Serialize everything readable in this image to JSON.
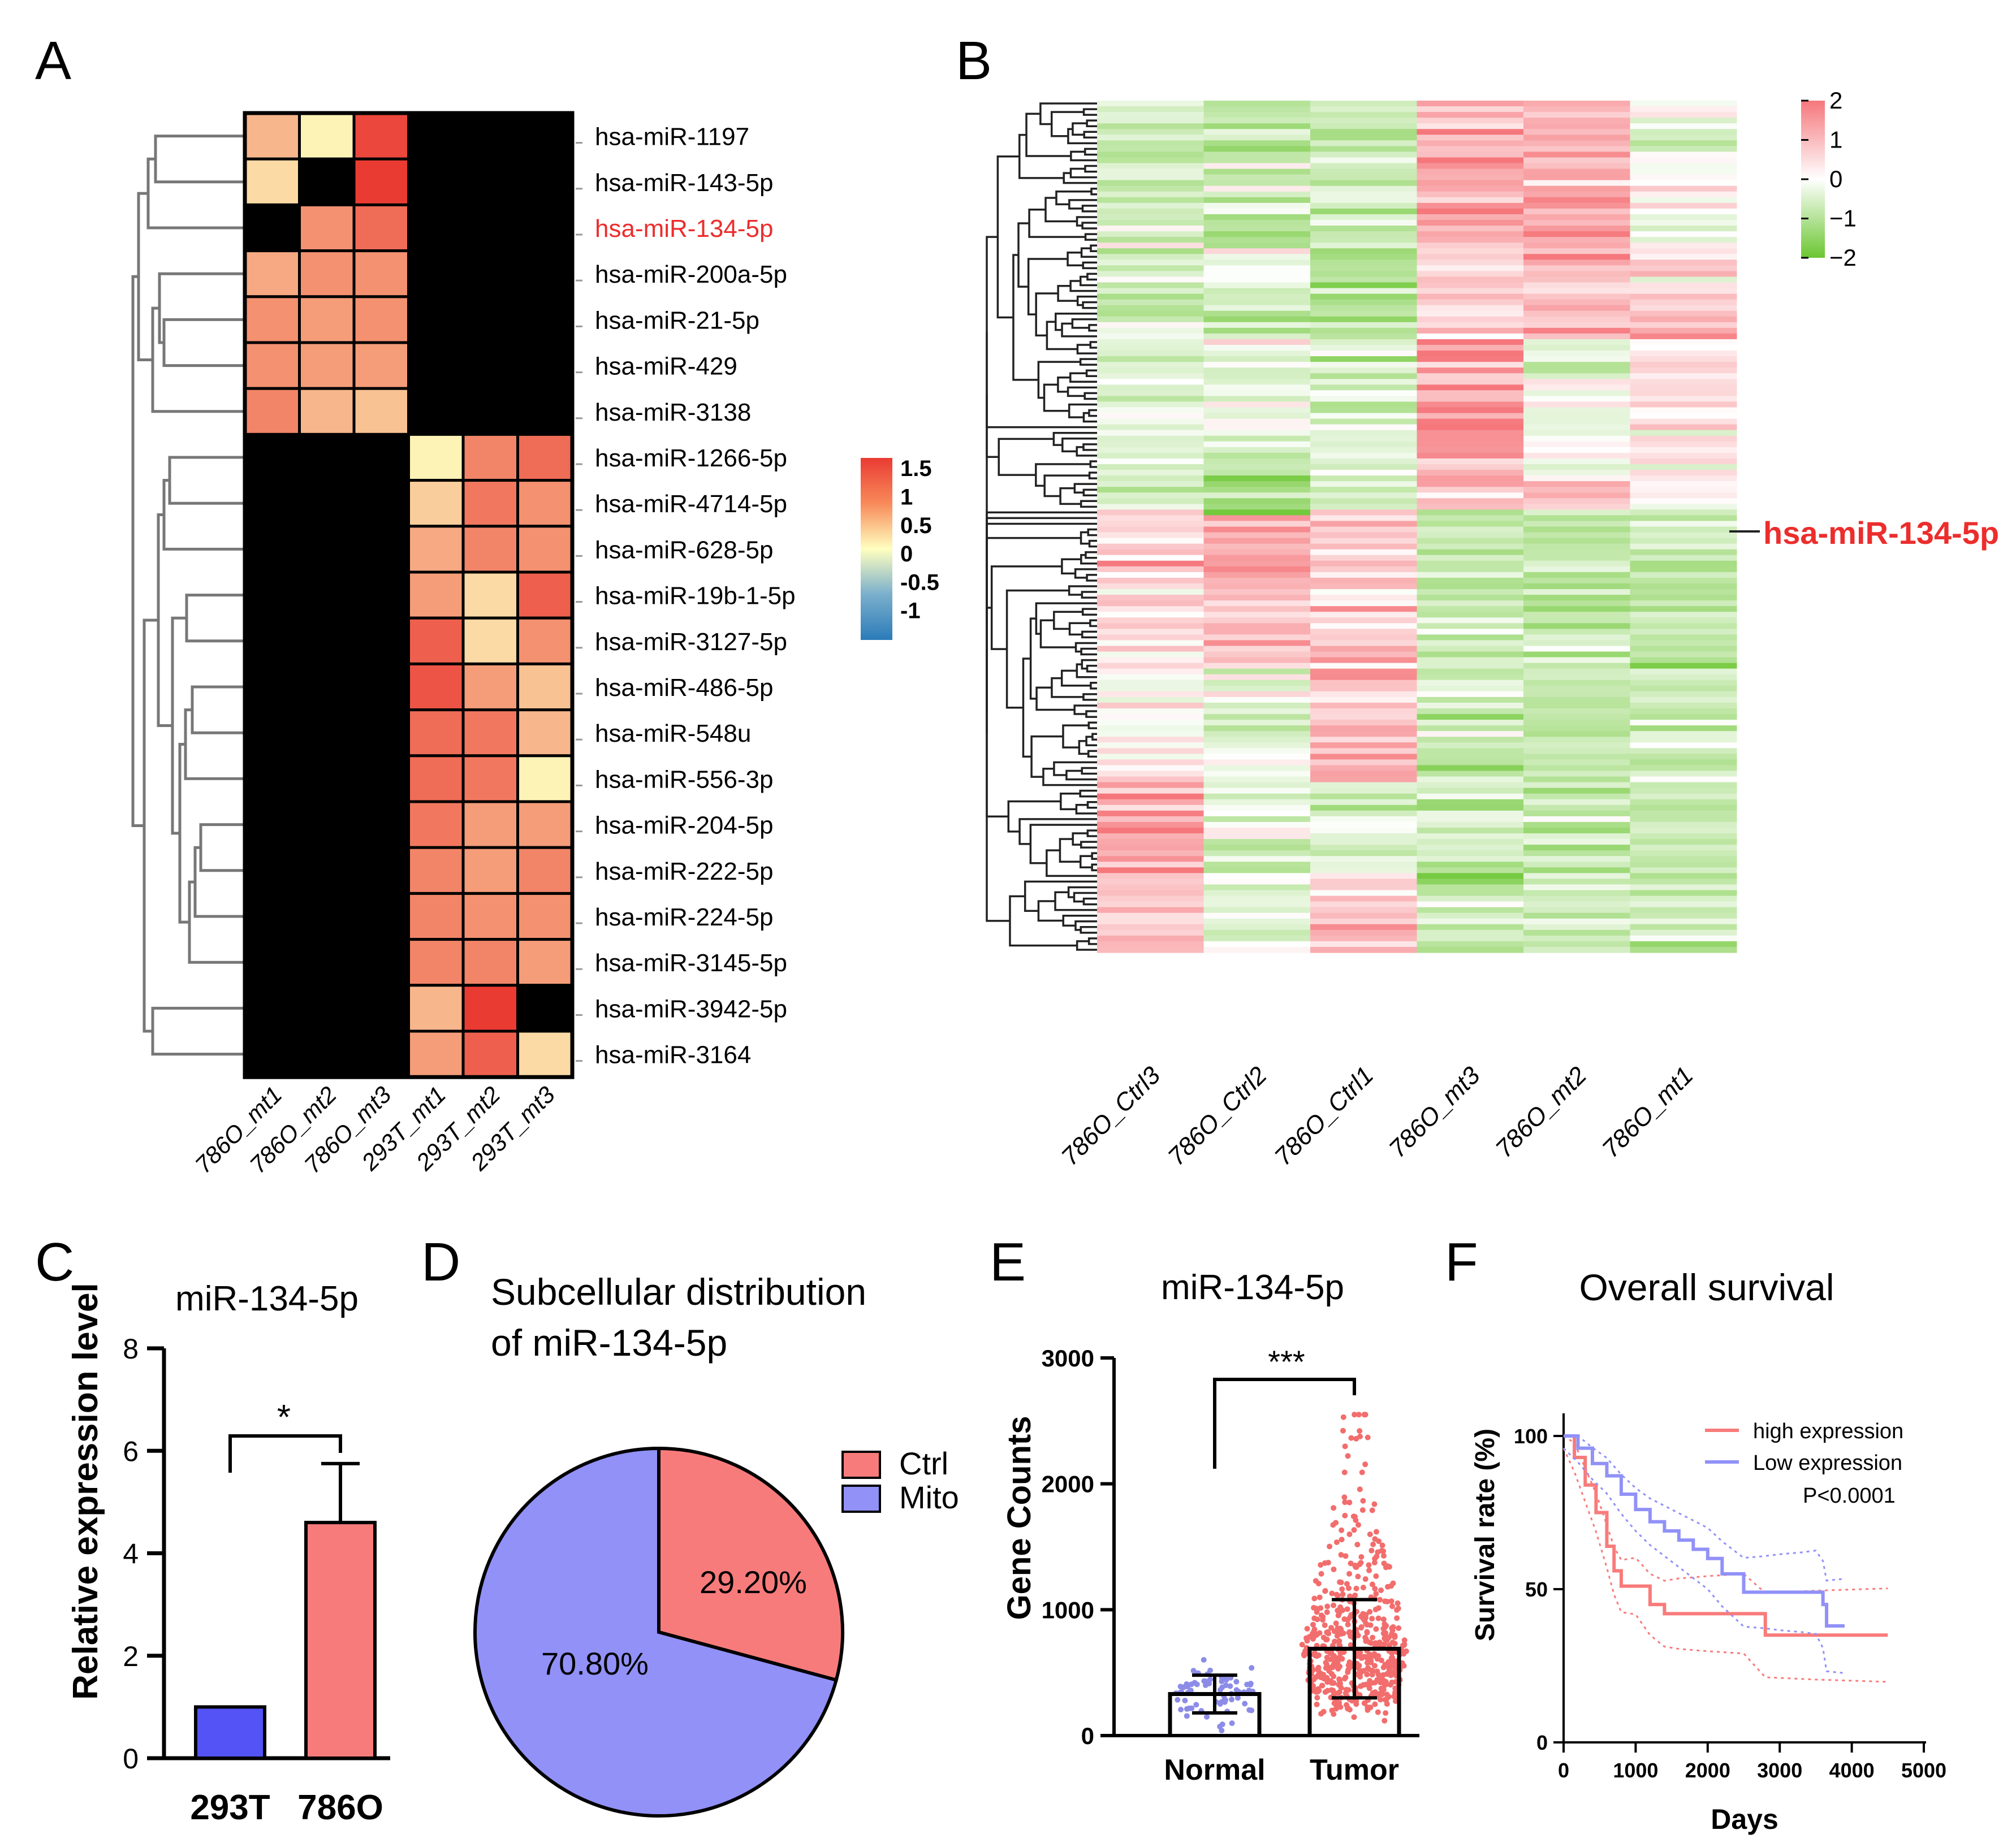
{
  "panel_labels": [
    "A",
    "B",
    "C",
    "D",
    "E",
    "F"
  ],
  "colors": {
    "heat_low": "#2b7bb9",
    "heat_mid": "#ffffbf",
    "heat_high": "#ea3b33",
    "hm_low": "#6bc631",
    "hm_mid": "#ffffff",
    "hm_high": "#f5777c",
    "bar_293T": "#5353f6",
    "bar_786O": "#f87b7b",
    "pie_ctrl": "#f87b7b",
    "pie_mito": "#9191f8",
    "normal_pts": "#8c8ce8",
    "tumor_pts": "#f26d6d",
    "high_expr": "#f87b7b",
    "low_expr": "#9191f8",
    "highlight_red": "#ec2d2d"
  },
  "chart_data": [
    {
      "panel": "A",
      "type": "heatmap",
      "rows": [
        "hsa-miR-1197",
        "hsa-miR-143-5p",
        "hsa-miR-134-5p",
        "hsa-miR-200a-5p",
        "hsa-miR-21-5p",
        "hsa-miR-429",
        "hsa-miR-3138",
        "hsa-miR-1266-5p",
        "hsa-miR-4714-5p",
        "hsa-miR-628-5p",
        "hsa-miR-19b-1-5p",
        "hsa-miR-3127-5p",
        "hsa-miR-486-5p",
        "hsa-miR-548u",
        "hsa-miR-556-3p",
        "hsa-miR-204-5p",
        "hsa-miR-222-5p",
        "hsa-miR-224-5p",
        "hsa-miR-3145-5p",
        "hsa-miR-3942-5p",
        "hsa-miR-3164"
      ],
      "columns": [
        "786O_mt1",
        "786O_mt2",
        "786O_mt3",
        "293T_mt1",
        "293T_mt2",
        "293T_mt3"
      ],
      "highlighted_row": "hsa-miR-134-5p",
      "values": [
        [
          0.6,
          0.1,
          1.5,
          -0.8,
          -0.8,
          -0.6
        ],
        [
          0.3,
          -0.1,
          1.6,
          -0.7,
          -0.7,
          -0.7
        ],
        [
          -0.1,
          0.9,
          1.2,
          -0.8,
          -0.7,
          -0.8
        ],
        [
          0.7,
          0.9,
          0.9,
          -0.8,
          -0.8,
          -0.8
        ],
        [
          0.9,
          0.8,
          0.9,
          -0.8,
          -0.8,
          -0.8
        ],
        [
          0.9,
          0.8,
          0.8,
          -0.8,
          -0.8,
          -0.8
        ],
        [
          1.0,
          0.6,
          0.5,
          -0.8,
          -0.4,
          -1.3
        ],
        [
          -0.8,
          -0.7,
          -0.8,
          0.1,
          1.0,
          1.2
        ],
        [
          -0.8,
          -0.8,
          -0.8,
          0.4,
          1.1,
          0.9
        ],
        [
          -0.6,
          -0.9,
          -1.0,
          0.7,
          1.0,
          0.9
        ],
        [
          -0.8,
          -0.8,
          -0.8,
          0.8,
          0.3,
          1.3
        ],
        [
          -0.8,
          -0.8,
          -0.8,
          1.3,
          0.3,
          0.9
        ],
        [
          -0.8,
          -0.8,
          -0.8,
          1.4,
          0.8,
          0.5
        ],
        [
          -0.8,
          -1.0,
          -0.8,
          1.2,
          1.1,
          0.6
        ],
        [
          -0.8,
          -0.7,
          -0.8,
          1.2,
          1.1,
          0.1
        ],
        [
          -0.8,
          -0.8,
          -0.8,
          1.1,
          0.8,
          0.8
        ],
        [
          -0.8,
          -0.8,
          -0.8,
          1.0,
          0.8,
          1.0
        ],
        [
          -0.8,
          -0.8,
          -0.8,
          1.0,
          0.9,
          0.9
        ],
        [
          -0.8,
          -0.7,
          -1.0,
          1.0,
          1.0,
          0.8
        ],
        [
          -0.7,
          -0.8,
          -0.5,
          0.6,
          1.6,
          -0.3
        ],
        [
          -0.8,
          -0.8,
          -0.8,
          0.8,
          1.3,
          0.3
        ]
      ],
      "legend_ticks": [
        "1.5",
        "1",
        "0.5",
        "0",
        "-0.5",
        "-1"
      ],
      "range": [
        -1.5,
        1.7
      ]
    },
    {
      "panel": "B",
      "type": "heatmap",
      "columns": [
        "786O_Ctrl3",
        "786O_Ctrl2",
        "786O_Ctrl1",
        "786O_mt3",
        "786O_mt2",
        "786O_mt1"
      ],
      "n_rows": 150,
      "annotation": "hsa-miR-134-5p",
      "legend_ticks": [
        "2",
        "1",
        "0",
        "-1",
        "-2"
      ],
      "range": [
        -2,
        2
      ],
      "block_means": [
        {
          "rows": [
            0,
            26
          ],
          "means": [
            -0.6,
            -0.7,
            -0.7,
            0.9,
            1.0,
            -0.2
          ]
        },
        {
          "rows": [
            26,
            42
          ],
          "means": [
            -0.5,
            -0.6,
            -0.9,
            0.5,
            0.7,
            0.6
          ]
        },
        {
          "rows": [
            42,
            66
          ],
          "means": [
            -0.4,
            -0.3,
            -0.5,
            1.2,
            -0.2,
            0.2
          ]
        },
        {
          "rows": [
            66,
            72
          ],
          "means": [
            -0.7,
            -1.2,
            -0.6,
            0.5,
            0.6,
            0.2
          ]
        },
        {
          "rows": [
            72,
            100
          ],
          "means": [
            0.4,
            0.8,
            0.6,
            -0.6,
            -0.8,
            -0.8
          ]
        },
        {
          "rows": [
            100,
            120
          ],
          "means": [
            0.2,
            -0.4,
            1.0,
            -0.6,
            -0.7,
            -0.7
          ]
        },
        {
          "rows": [
            120,
            136
          ],
          "means": [
            1.0,
            -0.4,
            -0.5,
            -0.7,
            -0.6,
            -0.7
          ]
        },
        {
          "rows": [
            136,
            150
          ],
          "means": [
            0.6,
            -0.4,
            0.8,
            -0.6,
            -0.6,
            -0.6
          ]
        }
      ]
    },
    {
      "panel": "C",
      "type": "bar",
      "title": "miR-134-5p",
      "ylabel": "Relative expression level",
      "categories": [
        "293T",
        "786O"
      ],
      "values": [
        1.0,
        4.6
      ],
      "errors": [
        0,
        1.15
      ],
      "ylim": [
        0,
        8
      ],
      "yticks": [
        "0",
        "2",
        "4",
        "6",
        "8"
      ],
      "significance": "*"
    },
    {
      "panel": "D",
      "type": "pie",
      "title_line1": "Subcellular distribution",
      "title_line2": "of miR-134-5p",
      "labels": [
        "Ctrl",
        "Mito"
      ],
      "values": [
        29.2,
        70.8
      ],
      "value_labels": [
        "29.20%",
        "70.80%"
      ]
    },
    {
      "panel": "E",
      "type": "scatter",
      "title": "miR-134-5p",
      "ylabel": "Gene Counts",
      "categories": [
        "Normal",
        "Tumor"
      ],
      "means": [
        330,
        690
      ],
      "sd": [
        150,
        390
      ],
      "n_points": [
        72,
        530
      ],
      "ylim": [
        0,
        3000
      ],
      "yticks": [
        "0",
        "1000",
        "2000",
        "3000"
      ],
      "significance": "***"
    },
    {
      "panel": "F",
      "type": "line",
      "title": "Overall survival",
      "xlabel": "Days",
      "ylabel": "Survival rate (%)",
      "xlim": [
        0,
        5000
      ],
      "ylim": [
        0,
        100
      ],
      "xticks": [
        "0",
        "1000",
        "2000",
        "3000",
        "4000",
        "5000"
      ],
      "yticks": [
        "0",
        "50",
        "100"
      ],
      "pvalue": "P<0.0001",
      "series": [
        {
          "name": "high expression",
          "x": [
            0,
            150,
            300,
            450,
            600,
            700,
            800,
            1000,
            1200,
            1400,
            1600,
            2000,
            2500,
            2800,
            3500,
            4500
          ],
          "y": [
            100,
            93,
            84,
            75,
            64,
            56,
            51,
            51,
            45,
            42,
            42,
            42,
            42,
            35,
            35,
            35
          ]
        },
        {
          "name": "Low expression",
          "x": [
            0,
            200,
            400,
            600,
            800,
            1000,
            1200,
            1400,
            1600,
            1800,
            2000,
            2200,
            2500,
            2800,
            3000,
            3300,
            3500,
            3600,
            3650,
            3900
          ],
          "y": [
            100,
            96,
            91,
            87,
            81,
            76,
            72,
            69,
            66,
            63,
            60,
            55,
            49,
            49,
            49,
            49,
            49,
            45,
            38,
            38
          ]
        }
      ]
    }
  ]
}
